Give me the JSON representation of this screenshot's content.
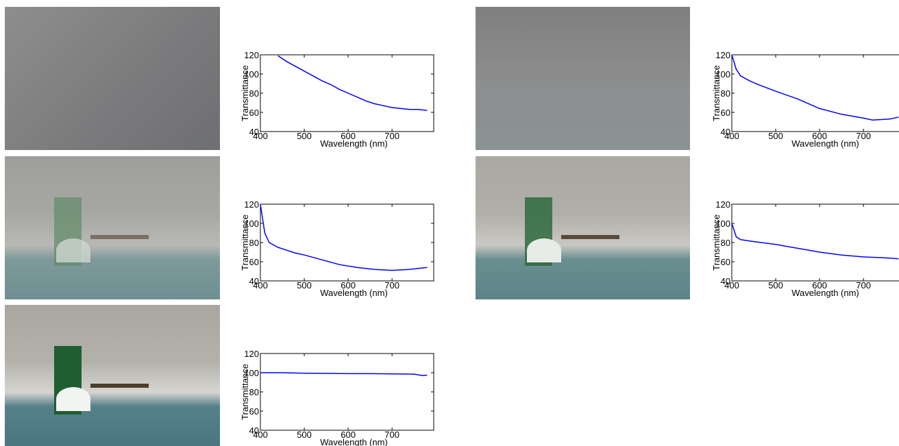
{
  "chart_data": [
    {
      "type": "line",
      "ylabel": "Transmittance",
      "xlabel": "Wavelength (nm)",
      "x": [
        440,
        460,
        480,
        500,
        520,
        540,
        560,
        580,
        600,
        620,
        640,
        660,
        680,
        700,
        720,
        740,
        760,
        780
      ],
      "series": [
        {
          "color": "#0000ff",
          "values": [
            119,
            113,
            108,
            103,
            98,
            93,
            89,
            84,
            80,
            76,
            72,
            69,
            67,
            65,
            64,
            63,
            63,
            62
          ]
        }
      ],
      "xlim": [
        400,
        795
      ],
      "ylim": [
        40,
        120
      ],
      "xticks": [
        400,
        500,
        600,
        700
      ],
      "yticks": [
        40,
        60,
        80,
        100,
        120
      ]
    },
    {
      "type": "line",
      "ylabel": "Transmittance",
      "xlabel": "Wavelength (nm)",
      "x": [
        400,
        410,
        420,
        440,
        460,
        480,
        500,
        540,
        580,
        620,
        660,
        700,
        740,
        760,
        780
      ],
      "series": [
        {
          "color": "#0000ff",
          "values": [
            120,
            90,
            80,
            75,
            72,
            69,
            67,
            62,
            57,
            54,
            52,
            51,
            52,
            53,
            54
          ]
        }
      ],
      "xlim": [
        400,
        795
      ],
      "ylim": [
        40,
        120
      ],
      "xticks": [
        400,
        500,
        600,
        700
      ],
      "yticks": [
        40,
        60,
        80,
        100,
        120
      ]
    },
    {
      "type": "line",
      "ylabel": "Transmittance",
      "xlabel": "Wavelength (nm)",
      "x": [
        400,
        410,
        420,
        440,
        460,
        500,
        550,
        600,
        650,
        700,
        720,
        760,
        780
      ],
      "series": [
        {
          "color": "#0000ff",
          "values": [
            120,
            105,
            98,
            93,
            89,
            82,
            74,
            64,
            58,
            54,
            52,
            53,
            55
          ]
        }
      ],
      "xlim": [
        400,
        795
      ],
      "ylim": [
        40,
        120
      ],
      "xticks": [
        400,
        500,
        600,
        700
      ],
      "yticks": [
        40,
        60,
        80,
        100,
        120
      ]
    },
    {
      "type": "line",
      "ylabel": "Transmittance",
      "xlabel": "Wavelength (nm)",
      "x": [
        400,
        410,
        420,
        450,
        500,
        550,
        600,
        650,
        700,
        750,
        780
      ],
      "series": [
        {
          "color": "#0000ff",
          "values": [
            100,
            86,
            83,
            81,
            78,
            74,
            70,
            67,
            65,
            64,
            63
          ]
        }
      ],
      "xlim": [
        400,
        795
      ],
      "ylim": [
        40,
        120
      ],
      "xticks": [
        400,
        500,
        600,
        700
      ],
      "yticks": [
        40,
        60,
        80,
        100,
        120
      ]
    },
    {
      "type": "line",
      "ylabel": "Transmittance",
      "xlabel": "Wavelength (nm)",
      "x": [
        400,
        450,
        500,
        550,
        600,
        650,
        700,
        750,
        770,
        780
      ],
      "series": [
        {
          "color": "#0000ff",
          "values": [
            100,
            100,
            99.5,
            99.3,
            99,
            99,
            98.8,
            98.5,
            97,
            97.5
          ]
        }
      ],
      "xlim": [
        400,
        795
      ],
      "ylim": [
        40,
        120
      ],
      "xticks": [
        400,
        500,
        600,
        700
      ],
      "yticks": [
        40,
        60,
        80,
        100,
        120
      ]
    }
  ]
}
